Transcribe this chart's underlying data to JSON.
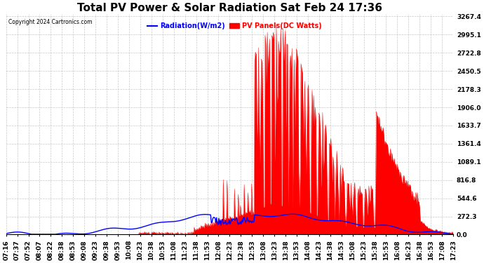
{
  "title": "Total PV Power & Solar Radiation Sat Feb 24 17:36",
  "copyright": "Copyright 2024 Cartronics.com",
  "legend_radiation": "Radiation(W/m2)",
  "legend_pv": "PV Panels(DC Watts)",
  "radiation_color": "blue",
  "pv_color": "red",
  "ymax": 3267.4,
  "ymin": 0.0,
  "yticks": [
    0.0,
    272.3,
    544.6,
    816.8,
    1089.1,
    1361.4,
    1633.7,
    1906.0,
    2178.3,
    2450.5,
    2722.8,
    2995.1,
    3267.4
  ],
  "background_color": "#ffffff",
  "grid_color": "#bbbbbb",
  "title_fontsize": 11,
  "tick_label_fontsize": 6.5,
  "xtick_labels": [
    "07:16",
    "07:37",
    "07:52",
    "08:07",
    "08:22",
    "08:38",
    "08:53",
    "09:08",
    "09:23",
    "09:38",
    "09:53",
    "10:08",
    "10:23",
    "10:38",
    "10:53",
    "11:08",
    "11:23",
    "11:38",
    "11:53",
    "12:08",
    "12:23",
    "12:38",
    "12:53",
    "13:08",
    "13:23",
    "13:38",
    "13:53",
    "14:08",
    "14:23",
    "14:38",
    "14:53",
    "15:08",
    "15:23",
    "15:38",
    "15:53",
    "16:08",
    "16:23",
    "16:38",
    "16:53",
    "17:08",
    "17:23"
  ]
}
